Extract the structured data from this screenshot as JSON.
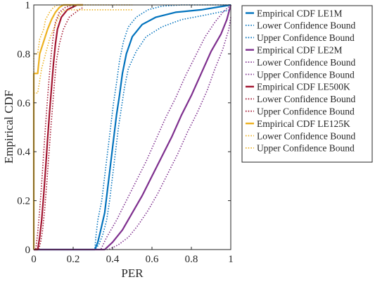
{
  "chart_data": {
    "type": "line",
    "xlabel": "PER",
    "ylabel": "Empirical CDF",
    "xlim": [
      0,
      1
    ],
    "ylim": [
      0,
      1
    ],
    "x_ticks": [
      "0",
      "0.2",
      "0.4",
      "0.6",
      "0.8",
      "1"
    ],
    "y_ticks": [
      "0",
      "0.2",
      "0.4",
      "0.6",
      "0.8",
      "1"
    ],
    "grid": false,
    "legend_position": "outside-right",
    "series": [
      {
        "name": "Empirical CDF LE1M",
        "color": "#0072BD",
        "dash": "solid",
        "points": [
          [
            0,
            0
          ],
          [
            0.31,
            0
          ],
          [
            0.325,
            0.03
          ],
          [
            0.34,
            0.08
          ],
          [
            0.36,
            0.15
          ],
          [
            0.375,
            0.25
          ],
          [
            0.39,
            0.35
          ],
          [
            0.405,
            0.45
          ],
          [
            0.42,
            0.55
          ],
          [
            0.435,
            0.63
          ],
          [
            0.45,
            0.72
          ],
          [
            0.47,
            0.8
          ],
          [
            0.5,
            0.87
          ],
          [
            0.55,
            0.92
          ],
          [
            0.62,
            0.95
          ],
          [
            0.72,
            0.97
          ],
          [
            0.85,
            0.98
          ],
          [
            1,
            1
          ]
        ]
      },
      {
        "name": "Lower Confidence Bound",
        "color": "#0072BD",
        "dash": "dotted",
        "points": [
          [
            0,
            0
          ],
          [
            0.31,
            0
          ],
          [
            0.33,
            0.02
          ],
          [
            0.35,
            0.06
          ],
          [
            0.37,
            0.12
          ],
          [
            0.385,
            0.2
          ],
          [
            0.4,
            0.3
          ],
          [
            0.415,
            0.4
          ],
          [
            0.43,
            0.5
          ],
          [
            0.445,
            0.58
          ],
          [
            0.46,
            0.66
          ],
          [
            0.48,
            0.74
          ],
          [
            0.52,
            0.81
          ],
          [
            0.57,
            0.87
          ],
          [
            0.65,
            0.91
          ],
          [
            0.75,
            0.94
          ],
          [
            0.88,
            0.96
          ],
          [
            1,
            0.98
          ]
        ]
      },
      {
        "name": "Upper Confidence Bound",
        "color": "#0072BD",
        "dash": "dotted",
        "points": [
          [
            0,
            0
          ],
          [
            0.31,
            0
          ],
          [
            0.315,
            0.05
          ],
          [
            0.325,
            0.12
          ],
          [
            0.345,
            0.2
          ],
          [
            0.36,
            0.3
          ],
          [
            0.375,
            0.4
          ],
          [
            0.39,
            0.5
          ],
          [
            0.405,
            0.6
          ],
          [
            0.42,
            0.68
          ],
          [
            0.435,
            0.77
          ],
          [
            0.455,
            0.85
          ],
          [
            0.48,
            0.91
          ],
          [
            0.52,
            0.95
          ],
          [
            0.58,
            0.98
          ],
          [
            0.65,
            0.995
          ],
          [
            0.75,
            1
          ],
          [
            1,
            1
          ]
        ]
      },
      {
        "name": "Empirical CDF LE2M",
        "color": "#7E2F8E",
        "dash": "solid",
        "points": [
          [
            0,
            0
          ],
          [
            0.36,
            0
          ],
          [
            0.4,
            0.03
          ],
          [
            0.45,
            0.08
          ],
          [
            0.5,
            0.15
          ],
          [
            0.55,
            0.22
          ],
          [
            0.6,
            0.3
          ],
          [
            0.65,
            0.38
          ],
          [
            0.7,
            0.46
          ],
          [
            0.75,
            0.55
          ],
          [
            0.8,
            0.63
          ],
          [
            0.85,
            0.72
          ],
          [
            0.9,
            0.81
          ],
          [
            0.95,
            0.88
          ],
          [
            0.98,
            0.94
          ],
          [
            1,
            1
          ]
        ]
      },
      {
        "name": "Lower Confidence Bound",
        "color": "#7E2F8E",
        "dash": "dotted",
        "points": [
          [
            0,
            0
          ],
          [
            0.38,
            0
          ],
          [
            0.43,
            0.02
          ],
          [
            0.48,
            0.05
          ],
          [
            0.53,
            0.1
          ],
          [
            0.58,
            0.16
          ],
          [
            0.63,
            0.23
          ],
          [
            0.68,
            0.31
          ],
          [
            0.73,
            0.39
          ],
          [
            0.78,
            0.48
          ],
          [
            0.83,
            0.56
          ],
          [
            0.88,
            0.65
          ],
          [
            0.92,
            0.74
          ],
          [
            0.96,
            0.82
          ],
          [
            0.99,
            0.9
          ],
          [
            1,
            0.95
          ]
        ]
      },
      {
        "name": "Upper Confidence Bound",
        "color": "#7E2F8E",
        "dash": "dotted",
        "points": [
          [
            0,
            0
          ],
          [
            0.34,
            0
          ],
          [
            0.37,
            0.05
          ],
          [
            0.42,
            0.12
          ],
          [
            0.47,
            0.2
          ],
          [
            0.52,
            0.28
          ],
          [
            0.57,
            0.36
          ],
          [
            0.62,
            0.45
          ],
          [
            0.67,
            0.54
          ],
          [
            0.72,
            0.62
          ],
          [
            0.77,
            0.71
          ],
          [
            0.82,
            0.79
          ],
          [
            0.87,
            0.87
          ],
          [
            0.92,
            0.93
          ],
          [
            0.96,
            0.97
          ],
          [
            1,
            1
          ]
        ]
      },
      {
        "name": "Empirical CDF LE500K",
        "color": "#A2142F",
        "dash": "solid",
        "points": [
          [
            0,
            0
          ],
          [
            0.02,
            0
          ],
          [
            0.03,
            0.05
          ],
          [
            0.04,
            0.12
          ],
          [
            0.05,
            0.22
          ],
          [
            0.06,
            0.33
          ],
          [
            0.07,
            0.45
          ],
          [
            0.08,
            0.56
          ],
          [
            0.09,
            0.66
          ],
          [
            0.1,
            0.76
          ],
          [
            0.11,
            0.84
          ],
          [
            0.12,
            0.9
          ],
          [
            0.14,
            0.95
          ],
          [
            0.17,
            0.98
          ],
          [
            0.22,
            1
          ],
          [
            0.25,
            1
          ]
        ]
      },
      {
        "name": "Lower Confidence Bound",
        "color": "#A2142F",
        "dash": "dotted",
        "points": [
          [
            0,
            0
          ],
          [
            0.025,
            0
          ],
          [
            0.035,
            0.03
          ],
          [
            0.045,
            0.08
          ],
          [
            0.055,
            0.16
          ],
          [
            0.065,
            0.26
          ],
          [
            0.075,
            0.37
          ],
          [
            0.085,
            0.48
          ],
          [
            0.095,
            0.58
          ],
          [
            0.105,
            0.68
          ],
          [
            0.115,
            0.77
          ],
          [
            0.13,
            0.84
          ],
          [
            0.15,
            0.9
          ],
          [
            0.18,
            0.95
          ],
          [
            0.23,
            0.98
          ],
          [
            0.25,
            0.99
          ]
        ]
      },
      {
        "name": "Upper Confidence Bound",
        "color": "#A2142F",
        "dash": "dotted",
        "points": [
          [
            0,
            0
          ],
          [
            0.01,
            0
          ],
          [
            0.02,
            0.07
          ],
          [
            0.03,
            0.16
          ],
          [
            0.04,
            0.27
          ],
          [
            0.05,
            0.39
          ],
          [
            0.06,
            0.51
          ],
          [
            0.07,
            0.62
          ],
          [
            0.08,
            0.72
          ],
          [
            0.09,
            0.81
          ],
          [
            0.1,
            0.88
          ],
          [
            0.11,
            0.93
          ],
          [
            0.13,
            0.97
          ],
          [
            0.16,
            0.99
          ],
          [
            0.2,
            1
          ],
          [
            0.25,
            1
          ]
        ]
      },
      {
        "name": "Empirical CDF LE125K",
        "color": "#EDB120",
        "dash": "solid",
        "points": [
          [
            0,
            0
          ],
          [
            0,
            0.72
          ],
          [
            0.02,
            0.72
          ],
          [
            0.03,
            0.8
          ],
          [
            0.05,
            0.85
          ],
          [
            0.07,
            0.9
          ],
          [
            0.09,
            0.94
          ],
          [
            0.11,
            0.97
          ],
          [
            0.13,
            0.99
          ],
          [
            0.15,
            1
          ],
          [
            0.25,
            1
          ]
        ]
      },
      {
        "name": "Lower Confidence Bound",
        "color": "#EDB120",
        "dash": "dotted",
        "points": [
          [
            0,
            0
          ],
          [
            0,
            0.64
          ],
          [
            0.02,
            0.64
          ],
          [
            0.04,
            0.74
          ],
          [
            0.06,
            0.8
          ],
          [
            0.08,
            0.86
          ],
          [
            0.1,
            0.9
          ],
          [
            0.12,
            0.94
          ],
          [
            0.14,
            0.97
          ],
          [
            0.16,
            0.98
          ],
          [
            0.5,
            0.98
          ]
        ]
      },
      {
        "name": "Upper Confidence Bound",
        "color": "#EDB120",
        "dash": "dotted",
        "points": [
          [
            0,
            0
          ],
          [
            0,
            0.8
          ],
          [
            0.02,
            0.8
          ],
          [
            0.03,
            0.86
          ],
          [
            0.05,
            0.9
          ],
          [
            0.06,
            0.94
          ],
          [
            0.08,
            0.97
          ],
          [
            0.1,
            0.99
          ],
          [
            0.12,
            1
          ],
          [
            0.5,
            1
          ]
        ]
      }
    ]
  }
}
